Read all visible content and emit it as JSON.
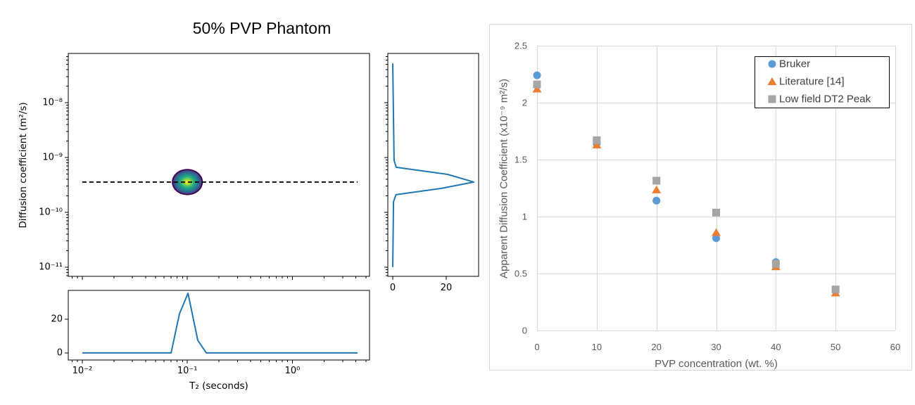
{
  "chart_data": [
    {
      "type": "heatmap",
      "title": "50% PVP Phantom",
      "ylabel": "Diffusion coefficient (m²/s)",
      "log_x": true,
      "log_y": true,
      "xlim": [
        0.00736,
        5.41
      ],
      "ylim": [
        6.76e-12,
        7.94e-08
      ],
      "xticks": [
        0.01,
        0.1,
        1
      ],
      "yticks": [
        {
          "value": 1e-08,
          "label": "10⁻⁸"
        },
        {
          "value": 1e-09,
          "label": "10⁻⁹"
        },
        {
          "value": 1e-10,
          "label": "10⁻¹⁰"
        },
        {
          "value": 1e-11,
          "label": "10⁻¹¹"
        }
      ],
      "peak": {
        "t2_seconds": 0.1,
        "diffusion_m2_s": 3.56e-10
      },
      "contours": [
        {
          "color": "#440154",
          "t2_halfwidth_decades": 0.148,
          "d_halfwidth_decades": 0.24
        },
        {
          "color": "#3b528b",
          "t2_halfwidth_decades": 0.134,
          "d_halfwidth_decades": 0.215
        },
        {
          "color": "#2c728e",
          "t2_halfwidth_decades": 0.115,
          "d_halfwidth_decades": 0.185
        },
        {
          "color": "#21918c",
          "t2_halfwidth_decades": 0.095,
          "d_halfwidth_decades": 0.152
        },
        {
          "color": "#28ae80",
          "t2_halfwidth_decades": 0.074,
          "d_halfwidth_decades": 0.118
        },
        {
          "color": "#5ec962",
          "t2_halfwidth_decades": 0.054,
          "d_halfwidth_decades": 0.086
        },
        {
          "color": "#addc30",
          "t2_halfwidth_decades": 0.034,
          "d_halfwidth_decades": 0.055
        },
        {
          "color": "#fde725",
          "t2_halfwidth_decades": 0.016,
          "d_halfwidth_decades": 0.026
        }
      ],
      "dashed_line": {
        "diffusion_m2_s": 3.56e-10,
        "t2_range": [
          0.01,
          4.17
        ]
      }
    },
    {
      "type": "line",
      "xlabel": "T₂ (seconds)",
      "log_x": true,
      "xlim": [
        0.00736,
        5.41
      ],
      "ylim": [
        -4.2,
        37.1
      ],
      "xticks": [
        {
          "value": 0.01,
          "label": "10⁻²"
        },
        {
          "value": 0.1,
          "label": "10⁻¹"
        },
        {
          "value": 1,
          "label": "10⁰"
        }
      ],
      "yticks": [
        {
          "value": 0,
          "label": "0"
        },
        {
          "value": 20,
          "label": "20"
        }
      ],
      "series": [
        {
          "color": "#1f77b4",
          "x": [
            0.01,
            0.07,
            0.0841,
            0.1014,
            0.1257,
            0.1514,
            4.17
          ],
          "y": [
            0,
            0,
            23.3,
            35.4,
            7.5,
            0,
            0
          ]
        }
      ]
    },
    {
      "type": "line",
      "log_y": true,
      "xlim": [
        -1.84,
        32.1
      ],
      "ylim": [
        6.76e-12,
        7.94e-08
      ],
      "xticks": [
        {
          "value": 0,
          "label": "0"
        },
        {
          "value": 20,
          "label": "20"
        }
      ],
      "yticks": [
        1e-08,
        1e-09,
        1e-10,
        1e-11
      ],
      "series": [
        {
          "color": "#1f77b4",
          "diffusion_m2_s": [
            1e-11,
            1.56e-10,
            2.09e-10,
            2.73e-10,
            3.56e-10,
            4.92e-10,
            6.62e-10,
            8.89e-10,
            5.22e-08
          ],
          "amplitude": [
            0,
            0.3,
            1.2,
            18.2,
            30.3,
            20.5,
            1.3,
            0.5,
            0
          ]
        }
      ]
    },
    {
      "type": "scatter",
      "xlabel": "PVP concentration (wt. %)",
      "ylabel": "Apparent Diffusion Coefficient (x10⁻⁹ m²/s)",
      "xlim": [
        0,
        60
      ],
      "ylim": [
        0,
        2.5
      ],
      "grid": true,
      "legend": "top-right",
      "xticks": [
        {
          "value": 0,
          "label": "0"
        },
        {
          "value": 10,
          "label": "10"
        },
        {
          "value": 20,
          "label": "20"
        },
        {
          "value": 30,
          "label": "30"
        },
        {
          "value": 40,
          "label": "40"
        },
        {
          "value": 50,
          "label": "50"
        },
        {
          "value": 60,
          "label": "60"
        }
      ],
      "yticks": [
        {
          "value": 0,
          "label": "0"
        },
        {
          "value": 0.5,
          "label": "0.5"
        },
        {
          "value": 1,
          "label": "1"
        },
        {
          "value": 1.5,
          "label": "1.5"
        },
        {
          "value": 2,
          "label": "2"
        },
        {
          "value": 2.5,
          "label": "2.5"
        }
      ],
      "series": [
        {
          "name": "Bruker",
          "marker": "circle",
          "color": "#5b9bd5",
          "x": [
            0,
            10,
            20,
            30,
            40,
            50
          ],
          "y": [
            2.24,
            1.64,
            1.14,
            0.81,
            0.6,
            0.35
          ]
        },
        {
          "name": "Literature [14]",
          "marker": "triangle",
          "color": "#ed7d31",
          "x": [
            0,
            10,
            20,
            30,
            40,
            50
          ],
          "y": [
            2.12,
            1.63,
            1.235,
            0.86,
            0.56,
            0.33
          ]
        },
        {
          "name": "Low field DT2 Peak",
          "marker": "square",
          "color": "#a5a5a5",
          "x": [
            0,
            10,
            20,
            30,
            40,
            50
          ],
          "y": [
            2.16,
            1.67,
            1.315,
            1.035,
            0.585,
            0.36
          ]
        }
      ]
    }
  ]
}
